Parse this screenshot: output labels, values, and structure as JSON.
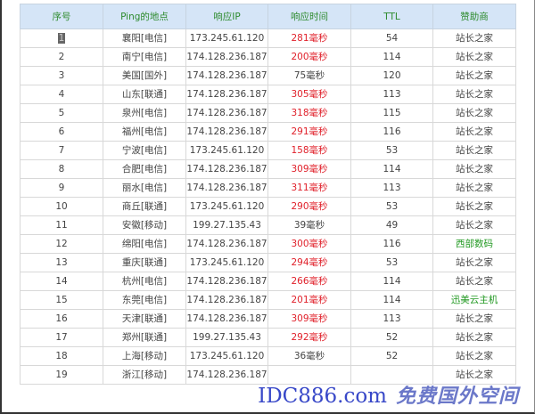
{
  "table": {
    "headers": [
      "序号",
      "Ping的地点",
      "响应IP",
      "响应时间",
      "TTL",
      "赞助商"
    ],
    "rows": [
      {
        "no": "1",
        "loc": "襄阳[电信]",
        "ip": "173.245.61.120",
        "time": "281毫秒",
        "slow": true,
        "ttl": "54",
        "sponsor": "站长之家",
        "sponsor_green": false
      },
      {
        "no": "2",
        "loc": "南宁[电信]",
        "ip": "174.128.236.187",
        "time": "200毫秒",
        "slow": true,
        "ttl": "114",
        "sponsor": "站长之家",
        "sponsor_green": false
      },
      {
        "no": "3",
        "loc": "美国[国外]",
        "ip": "174.128.236.187",
        "time": "75毫秒",
        "slow": false,
        "ttl": "120",
        "sponsor": "站长之家",
        "sponsor_green": false
      },
      {
        "no": "4",
        "loc": "山东[联通]",
        "ip": "174.128.236.187",
        "time": "305毫秒",
        "slow": true,
        "ttl": "113",
        "sponsor": "站长之家",
        "sponsor_green": false
      },
      {
        "no": "5",
        "loc": "泉州[电信]",
        "ip": "174.128.236.187",
        "time": "318毫秒",
        "slow": true,
        "ttl": "115",
        "sponsor": "站长之家",
        "sponsor_green": false
      },
      {
        "no": "6",
        "loc": "福州[电信]",
        "ip": "174.128.236.187",
        "time": "291毫秒",
        "slow": true,
        "ttl": "116",
        "sponsor": "站长之家",
        "sponsor_green": false
      },
      {
        "no": "7",
        "loc": "宁波[电信]",
        "ip": "173.245.61.120",
        "time": "158毫秒",
        "slow": true,
        "ttl": "53",
        "sponsor": "站长之家",
        "sponsor_green": false
      },
      {
        "no": "8",
        "loc": "合肥[电信]",
        "ip": "174.128.236.187",
        "time": "309毫秒",
        "slow": true,
        "ttl": "114",
        "sponsor": "站长之家",
        "sponsor_green": false
      },
      {
        "no": "9",
        "loc": "丽水[电信]",
        "ip": "174.128.236.187",
        "time": "311毫秒",
        "slow": true,
        "ttl": "113",
        "sponsor": "站长之家",
        "sponsor_green": false
      },
      {
        "no": "10",
        "loc": "商丘[联通]",
        "ip": "173.245.61.120",
        "time": "290毫秒",
        "slow": true,
        "ttl": "53",
        "sponsor": "站长之家",
        "sponsor_green": false
      },
      {
        "no": "11",
        "loc": "安徽[移动]",
        "ip": "199.27.135.43",
        "time": "39毫秒",
        "slow": false,
        "ttl": "49",
        "sponsor": "站长之家",
        "sponsor_green": false
      },
      {
        "no": "12",
        "loc": "绵阳[电信]",
        "ip": "174.128.236.187",
        "time": "300毫秒",
        "slow": true,
        "ttl": "116",
        "sponsor": "西部数码",
        "sponsor_green": true
      },
      {
        "no": "13",
        "loc": "重庆[联通]",
        "ip": "173.245.61.120",
        "time": "294毫秒",
        "slow": true,
        "ttl": "53",
        "sponsor": "站长之家",
        "sponsor_green": false
      },
      {
        "no": "14",
        "loc": "杭州[电信]",
        "ip": "174.128.236.187",
        "time": "266毫秒",
        "slow": true,
        "ttl": "114",
        "sponsor": "站长之家",
        "sponsor_green": false
      },
      {
        "no": "15",
        "loc": "东莞[电信]",
        "ip": "174.128.236.187",
        "time": "201毫秒",
        "slow": true,
        "ttl": "114",
        "sponsor": "迅美云主机",
        "sponsor_green": true
      },
      {
        "no": "16",
        "loc": "天津[联通]",
        "ip": "174.128.236.187",
        "time": "309毫秒",
        "slow": true,
        "ttl": "113",
        "sponsor": "站长之家",
        "sponsor_green": false
      },
      {
        "no": "17",
        "loc": "郑州[联通]",
        "ip": "199.27.135.43",
        "time": "292毫秒",
        "slow": true,
        "ttl": "52",
        "sponsor": "站长之家",
        "sponsor_green": false
      },
      {
        "no": "18",
        "loc": "上海[移动]",
        "ip": "173.245.61.120",
        "time": "36毫秒",
        "slow": false,
        "ttl": "52",
        "sponsor": "站长之家",
        "sponsor_green": false
      },
      {
        "no": "19",
        "loc": "浙江[移动]",
        "ip": "174.128.236.187",
        "time": "",
        "slow": true,
        "ttl": "",
        "sponsor": "站长之家",
        "sponsor_green": false
      }
    ]
  },
  "watermark": {
    "line1": "IDC886.com",
    "line2": "免费国外空间",
    "color": "#3848c8"
  },
  "colors": {
    "header_bg": "#d5e5f7",
    "header_text": "#2e8b2e",
    "slow": "#e0202a",
    "sponsor_green": "#229922"
  }
}
